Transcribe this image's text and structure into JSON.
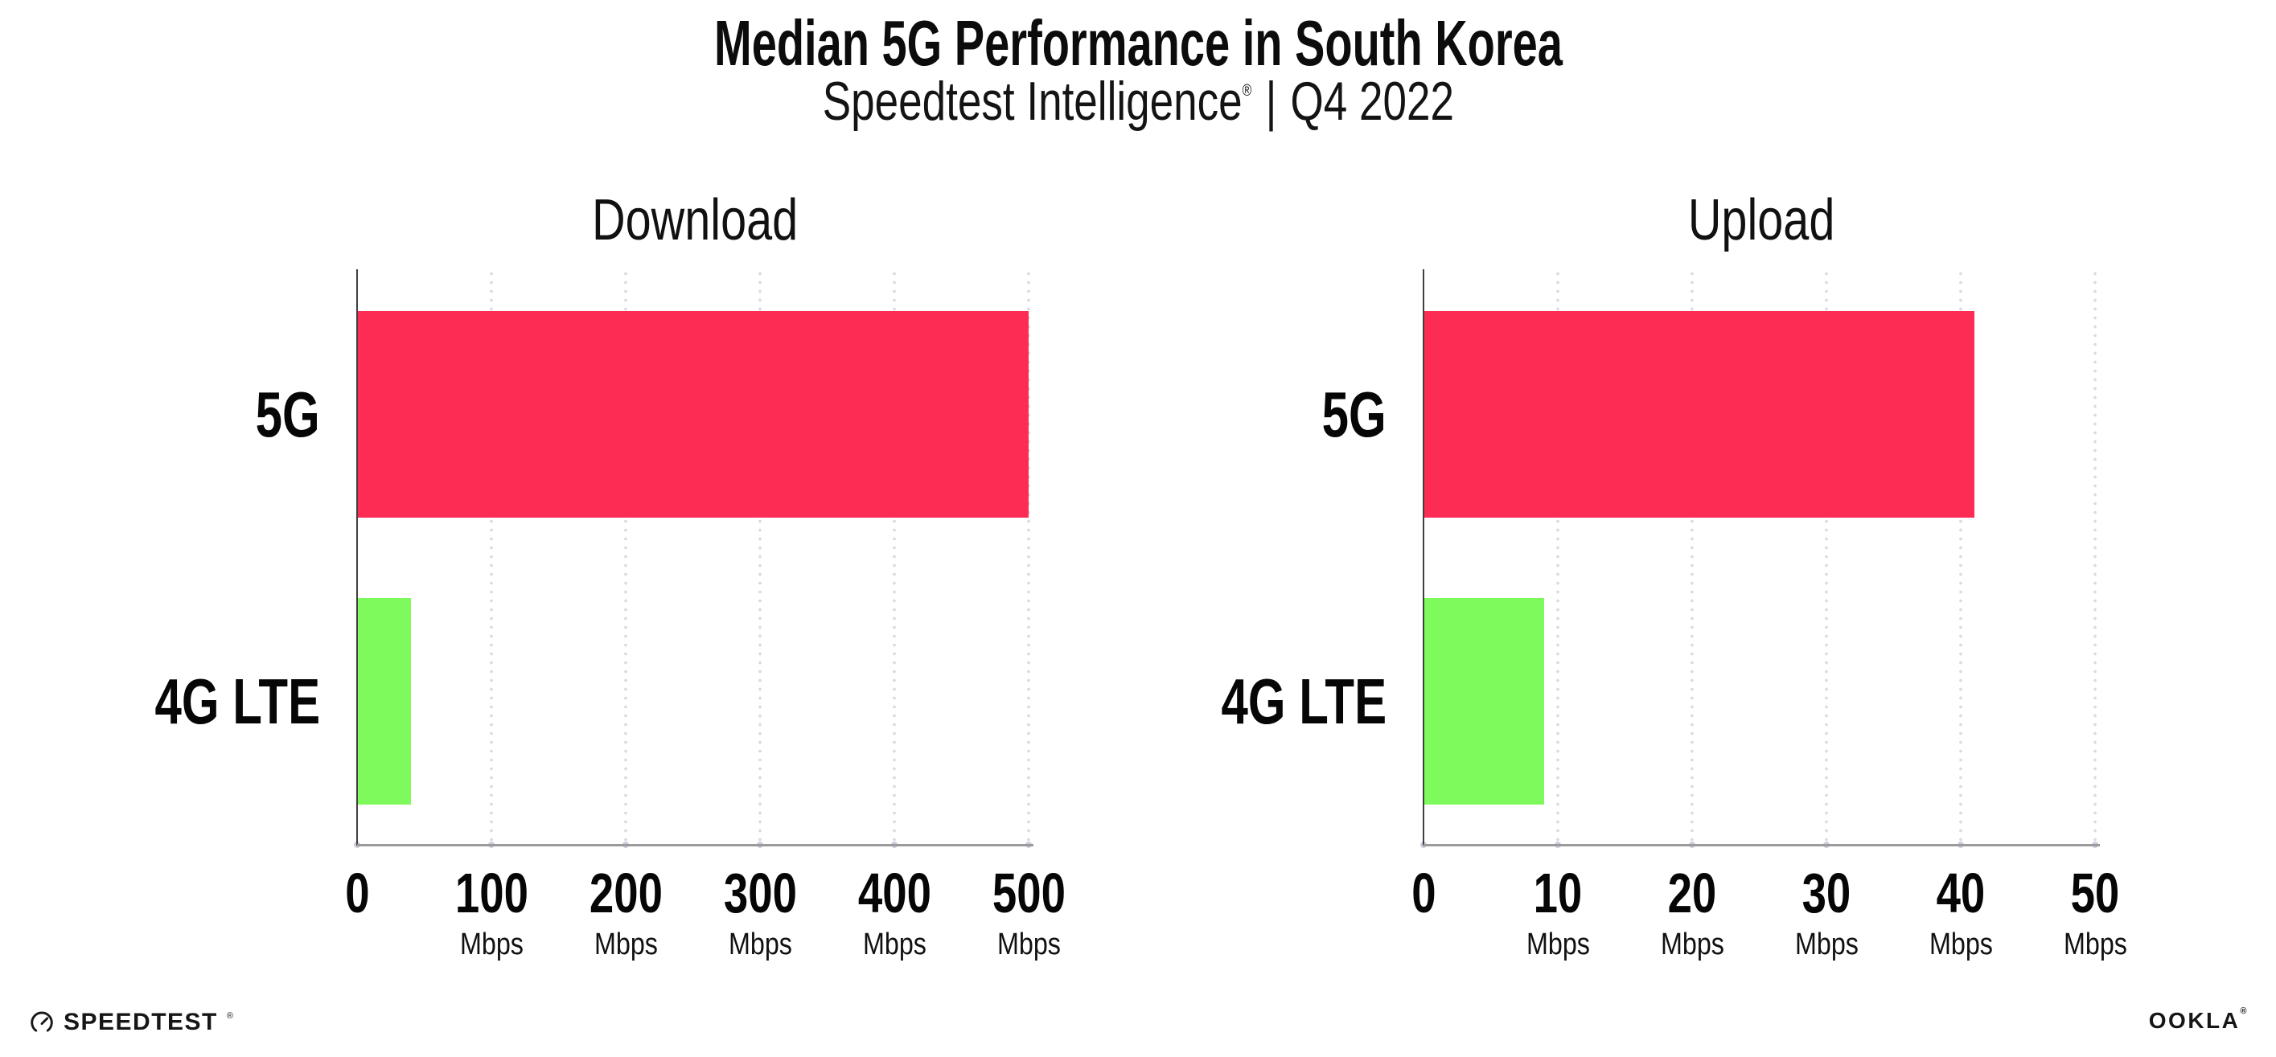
{
  "header": {
    "title": "Median 5G Performance in South Korea",
    "subtitle": {
      "brand": "Speedtest Intelligence",
      "registered": "®",
      "separator": "|",
      "period": "Q4 2022"
    }
  },
  "chart_data": [
    {
      "type": "bar",
      "orientation": "horizontal",
      "title": "Download",
      "unit": "Mbps",
      "categories": [
        "5G",
        "4G LTE"
      ],
      "values": [
        500,
        40
      ],
      "xlim": [
        0,
        500
      ],
      "xticks": [
        0,
        100,
        200,
        300,
        400,
        500
      ],
      "bar_colors": [
        "#fc2c55",
        "#7ffa5c"
      ],
      "grid": "vertical-dotted",
      "legend": "none"
    },
    {
      "type": "bar",
      "orientation": "horizontal",
      "title": "Upload",
      "unit": "Mbps",
      "categories": [
        "5G",
        "4G LTE"
      ],
      "values": [
        41,
        9
      ],
      "xlim": [
        0,
        50
      ],
      "xticks": [
        0,
        10,
        20,
        30,
        40,
        50
      ],
      "bar_colors": [
        "#fc2c55",
        "#7ffa5c"
      ],
      "grid": "vertical-dotted",
      "legend": "none"
    }
  ],
  "colors": {
    "bar_5g": "#fc2c55",
    "bar_4g_lte": "#7ffa5c",
    "axis_y": "#3f3f3f",
    "axis_x": "#9b9b9b",
    "gridline": "#d9dae4",
    "tick_dot": "#ccd0dc",
    "text": "#0c0c0c"
  },
  "footer": {
    "speedtest_label": "SPEEDTEST",
    "speedtest_mark": "®",
    "ookla_label": "OOKLA",
    "ookla_mark": "®"
  }
}
